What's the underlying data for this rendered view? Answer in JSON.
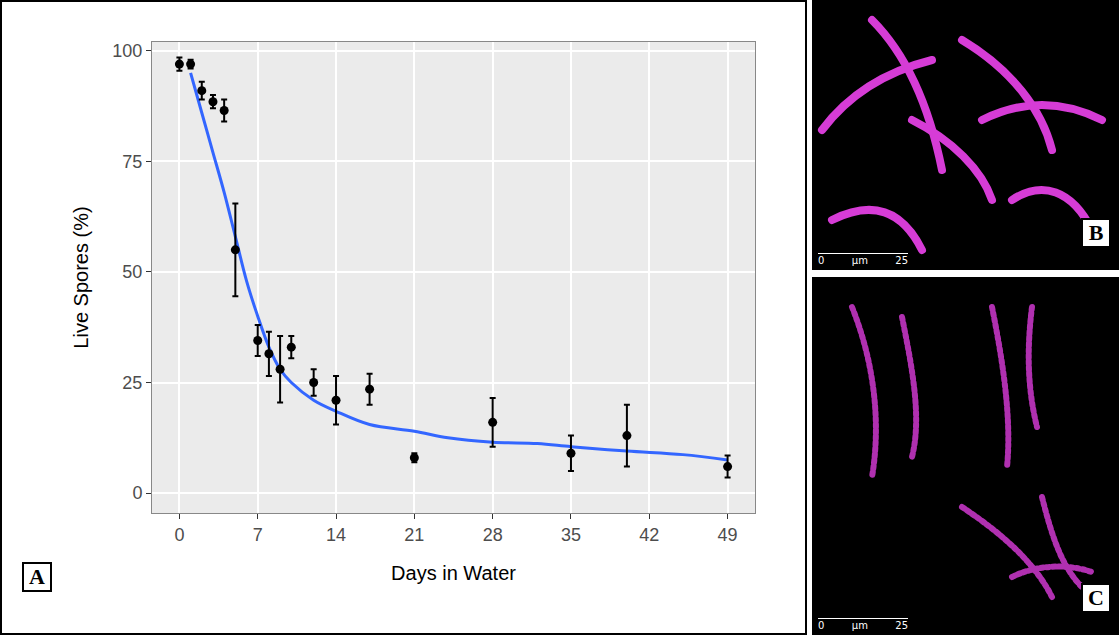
{
  "chart_data": {
    "type": "scatter",
    "x_label": "Days in Water",
    "y_label": "Live Spores (%)",
    "series": [
      {
        "type": "scatter",
        "marker": "circle",
        "color": "#000000",
        "x": [
          0,
          1,
          2,
          3,
          4,
          5,
          7,
          8,
          9,
          10,
          12,
          14,
          17,
          21,
          28,
          35,
          40,
          49
        ],
        "values": [
          97,
          97,
          91,
          88.5,
          86.5,
          55,
          34.5,
          31.5,
          28,
          33,
          25,
          21,
          23.5,
          8,
          16,
          9,
          13,
          6
        ],
        "error": [
          1.5,
          1,
          2,
          1.5,
          2.5,
          10.5,
          3.5,
          5,
          7.5,
          2.5,
          3,
          5.5,
          3.5,
          1,
          5.5,
          4,
          7,
          2.5
        ]
      },
      {
        "type": "line",
        "line_style": "solid",
        "color": "#3366ff",
        "x": [
          1,
          2,
          3,
          4,
          5,
          6,
          7,
          8,
          9,
          10,
          12,
          14,
          17,
          21,
          24,
          28,
          32,
          35,
          40,
          45,
          49
        ],
        "values": [
          95,
          86,
          77,
          68,
          58,
          48,
          40,
          33,
          28,
          25,
          21,
          18.5,
          15.5,
          14,
          12.5,
          11.5,
          11.2,
          10.5,
          9.5,
          8.7,
          7.5
        ]
      }
    ],
    "xlim": [
      -2.45,
      51.45
    ],
    "xticks": [
      0,
      7,
      14,
      21,
      28,
      35,
      42,
      49
    ],
    "ylim": [
      -4.5,
      102
    ],
    "yticks": [
      0,
      25,
      50,
      75,
      100
    ],
    "grid": true
  },
  "panels": [
    {
      "label": "A"
    },
    {
      "label": "B",
      "scale_bar": [
        "0",
        "µm",
        "25"
      ]
    },
    {
      "label": "C",
      "scale_bar": [
        "0",
        "µm",
        "25"
      ]
    }
  ]
}
